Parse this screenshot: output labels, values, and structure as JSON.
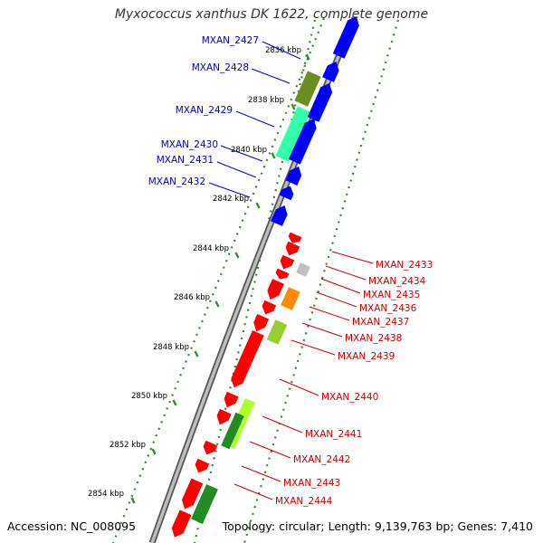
{
  "title": "Myxococcus xanthus DK 1622, complete genome",
  "accession_label": "Accession: NC_008095",
  "summary": "Topology: circular; Length: 9,139,763 bp; Genes: 7,410",
  "colors": {
    "forward_strand_gene": "#0000ff",
    "reverse_strand_gene": "#ff0000",
    "label_forward": "#0000cc",
    "label_reverse": "#cc0000",
    "backbone": "#999999",
    "backbone_shadow": "#555555",
    "dotted_track": "#2e8b2e"
  },
  "scale": {
    "unit": "kbp",
    "ticks": [
      "2836 kbp",
      "2838 kbp",
      "2840 kbp",
      "2842 kbp",
      "2844 kbp",
      "2846 kbp",
      "2848 kbp",
      "2850 kbp",
      "2852 kbp",
      "2854 kbp"
    ]
  },
  "forward_genes": [
    {
      "name": "MXAN_2427",
      "color": "#0000ff"
    },
    {
      "name": "MXAN_2428",
      "color": "#0000ff"
    },
    {
      "name": "MXAN_2429",
      "color": "#0000ff"
    },
    {
      "name": "MXAN_2430",
      "color": "#0000ff"
    },
    {
      "name": "MXAN_2431",
      "color": "#0000ff"
    },
    {
      "name": "MXAN_2432",
      "color": "#0000ff"
    }
  ],
  "reverse_genes": [
    {
      "name": "MXAN_2433",
      "color": "#ff0000"
    },
    {
      "name": "MXAN_2434",
      "color": "#ff0000"
    },
    {
      "name": "MXAN_2435",
      "color": "#ff0000"
    },
    {
      "name": "MXAN_2436",
      "color": "#ff0000"
    },
    {
      "name": "MXAN_2437",
      "color": "#ff0000"
    },
    {
      "name": "MXAN_2438",
      "color": "#ff0000"
    },
    {
      "name": "MXAN_2439",
      "color": "#ff0000"
    },
    {
      "name": "MXAN_2440",
      "color": "#ff0000"
    },
    {
      "name": "MXAN_2441",
      "color": "#ff0000"
    },
    {
      "name": "MXAN_2442",
      "color": "#ff0000"
    },
    {
      "name": "MXAN_2443",
      "color": "#ff0000"
    },
    {
      "name": "MXAN_2444",
      "color": "#ff0000"
    }
  ],
  "feature_blocks": [
    {
      "name": "olive-feature",
      "color": "#6b8e23"
    },
    {
      "name": "aquamarine-feature",
      "color": "#33ffaa"
    },
    {
      "name": "gray-feature",
      "color": "#c0c0c0"
    },
    {
      "name": "orange-feature",
      "color": "#ff8c00"
    },
    {
      "name": "lime-feature",
      "color": "#9acd32"
    },
    {
      "name": "yellowgreen-feature",
      "color": "#adff2f"
    },
    {
      "name": "green-feature",
      "color": "#228b22"
    }
  ]
}
